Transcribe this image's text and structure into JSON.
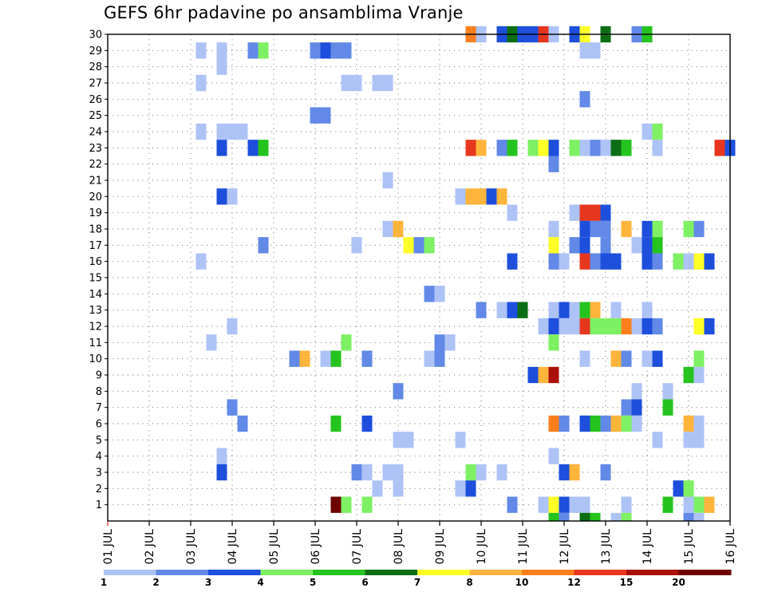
{
  "chart_data": {
    "type": "heatmap",
    "title": "GEFS 6hr padavine po ansamblima Vranje",
    "xlabel": "",
    "ylabel": "",
    "x_tick_labels": [
      "01 JUL",
      "02 JUL",
      "03 JUL",
      "04 JUL",
      "05 JUL",
      "06 JUL",
      "07 JUL",
      "08 JUL",
      "09 JUL",
      "10 JUL",
      "11 JUL",
      "12 JUL",
      "13 JUL",
      "14 JUL",
      "15 JUL",
      "16 JUL"
    ],
    "y_tick_labels": [
      "1",
      "2",
      "3",
      "4",
      "5",
      "6",
      "7",
      "8",
      "9",
      "10",
      "11",
      "12",
      "13",
      "14",
      "15",
      "16",
      "17",
      "18",
      "19",
      "20",
      "21",
      "22",
      "23",
      "24",
      "25",
      "26",
      "27",
      "28",
      "29",
      "30"
    ],
    "x_range": [
      "01 JUL",
      "16 JUL"
    ],
    "y_range": [
      1,
      30
    ],
    "time_step_hours": 6,
    "grid": true,
    "legend": {
      "placement": "bottom",
      "labels": [
        "1",
        "2",
        "3",
        "4",
        "5",
        "6",
        "7",
        "8",
        "10",
        "12",
        "15",
        "20"
      ],
      "colors": [
        "#aec3f5",
        "#6289e8",
        "#1d4fdc",
        "#7ef064",
        "#25c31e",
        "#0b6e14",
        "#ffff28",
        "#ffb43c",
        "#ff7f1e",
        "#e6371e",
        "#aa0f0a",
        "#6e0000"
      ]
    },
    "cells": [
      [
        30,
        35,
        "#ff7f1e"
      ],
      [
        30,
        36,
        "#aec3f5"
      ],
      [
        30,
        38,
        "#1d4fdc"
      ],
      [
        30,
        39,
        "#0b6e14"
      ],
      [
        30,
        40,
        "#1d4fdc"
      ],
      [
        30,
        41,
        "#1d4fdc"
      ],
      [
        30,
        42,
        "#e6371e"
      ],
      [
        30,
        43,
        "#aec3f5"
      ],
      [
        30,
        45,
        "#1d4fdc"
      ],
      [
        30,
        46,
        "#ffff28"
      ],
      [
        30,
        48,
        "#0b6e14"
      ],
      [
        30,
        51,
        "#6289e8"
      ],
      [
        30,
        52,
        "#25c31e"
      ],
      [
        29,
        9,
        "#aec3f5"
      ],
      [
        29,
        11,
        "#aec3f5"
      ],
      [
        29,
        14,
        "#6289e8"
      ],
      [
        29,
        15,
        "#7ef064"
      ],
      [
        29,
        20,
        "#6289e8"
      ],
      [
        29,
        21,
        "#1d4fdc"
      ],
      [
        29,
        22,
        "#6289e8"
      ],
      [
        29,
        23,
        "#6289e8"
      ],
      [
        29,
        46,
        "#aec3f5"
      ],
      [
        29,
        47,
        "#aec3f5"
      ],
      [
        28,
        11,
        "#aec3f5"
      ],
      [
        27,
        9,
        "#aec3f5"
      ],
      [
        27,
        23,
        "#aec3f5"
      ],
      [
        27,
        24,
        "#aec3f5"
      ],
      [
        27,
        26,
        "#aec3f5"
      ],
      [
        27,
        27,
        "#aec3f5"
      ],
      [
        26,
        46,
        "#6289e8"
      ],
      [
        25,
        20,
        "#6289e8"
      ],
      [
        25,
        21,
        "#6289e8"
      ],
      [
        24,
        9,
        "#aec3f5"
      ],
      [
        24,
        11,
        "#aec3f5"
      ],
      [
        24,
        12,
        "#aec3f5"
      ],
      [
        24,
        13,
        "#aec3f5"
      ],
      [
        24,
        52,
        "#aec3f5"
      ],
      [
        24,
        53,
        "#7ef064"
      ],
      [
        23,
        11,
        "#1d4fdc"
      ],
      [
        23,
        14,
        "#1d4fdc"
      ],
      [
        23,
        15,
        "#25c31e"
      ],
      [
        23,
        35,
        "#e6371e"
      ],
      [
        23,
        36,
        "#ffb43c"
      ],
      [
        23,
        38,
        "#6289e8"
      ],
      [
        23,
        39,
        "#25c31e"
      ],
      [
        23,
        41,
        "#7ef064"
      ],
      [
        23,
        42,
        "#ffff28"
      ],
      [
        23,
        43,
        "#1d4fdc"
      ],
      [
        23,
        45,
        "#7ef064"
      ],
      [
        23,
        46,
        "#aec3f5"
      ],
      [
        23,
        47,
        "#6289e8"
      ],
      [
        23,
        48,
        "#aec3f5"
      ],
      [
        23,
        49,
        "#0b6e14"
      ],
      [
        23,
        50,
        "#25c31e"
      ],
      [
        23,
        53,
        "#aec3f5"
      ],
      [
        23,
        59,
        "#e6371e"
      ],
      [
        23,
        60,
        "#1d4fdc"
      ],
      [
        22,
        43,
        "#6289e8"
      ],
      [
        21,
        27,
        "#aec3f5"
      ],
      [
        20,
        11,
        "#1d4fdc"
      ],
      [
        20,
        12,
        "#aec3f5"
      ],
      [
        20,
        34,
        "#aec3f5"
      ],
      [
        20,
        35,
        "#ffb43c"
      ],
      [
        20,
        36,
        "#ffb43c"
      ],
      [
        20,
        37,
        "#1d4fdc"
      ],
      [
        20,
        38,
        "#ffb43c"
      ],
      [
        19,
        39,
        "#aec3f5"
      ],
      [
        19,
        45,
        "#aec3f5"
      ],
      [
        19,
        46,
        "#e6371e"
      ],
      [
        19,
        47,
        "#e6371e"
      ],
      [
        19,
        48,
        "#1d4fdc"
      ],
      [
        18,
        27,
        "#aec3f5"
      ],
      [
        18,
        28,
        "#ffb43c"
      ],
      [
        18,
        43,
        "#aec3f5"
      ],
      [
        18,
        46,
        "#1d4fdc"
      ],
      [
        18,
        47,
        "#6289e8"
      ],
      [
        18,
        48,
        "#6289e8"
      ],
      [
        18,
        50,
        "#ffb43c"
      ],
      [
        18,
        52,
        "#1d4fdc"
      ],
      [
        18,
        53,
        "#7ef064"
      ],
      [
        18,
        56,
        "#7ef064"
      ],
      [
        18,
        57,
        "#6289e8"
      ],
      [
        17,
        15,
        "#6289e8"
      ],
      [
        17,
        24,
        "#aec3f5"
      ],
      [
        17,
        29,
        "#ffff28"
      ],
      [
        17,
        30,
        "#6289e8"
      ],
      [
        17,
        31,
        "#7ef064"
      ],
      [
        17,
        43,
        "#ffff28"
      ],
      [
        17,
        45,
        "#6289e8"
      ],
      [
        17,
        46,
        "#1d4fdc"
      ],
      [
        17,
        48,
        "#6289e8"
      ],
      [
        17,
        51,
        "#aec3f5"
      ],
      [
        17,
        52,
        "#1d4fdc"
      ],
      [
        17,
        53,
        "#25c31e"
      ],
      [
        16,
        9,
        "#aec3f5"
      ],
      [
        16,
        39,
        "#1d4fdc"
      ],
      [
        16,
        43,
        "#6289e8"
      ],
      [
        16,
        44,
        "#aec3f5"
      ],
      [
        16,
        46,
        "#e6371e"
      ],
      [
        16,
        47,
        "#6289e8"
      ],
      [
        16,
        48,
        "#1d4fdc"
      ],
      [
        16,
        49,
        "#1d4fdc"
      ],
      [
        16,
        52,
        "#1d4fdc"
      ],
      [
        16,
        53,
        "#6289e8"
      ],
      [
        16,
        55,
        "#7ef064"
      ],
      [
        16,
        56,
        "#aec3f5"
      ],
      [
        16,
        57,
        "#ffff28"
      ],
      [
        16,
        58,
        "#1d4fdc"
      ],
      [
        14,
        31,
        "#6289e8"
      ],
      [
        14,
        32,
        "#aec3f5"
      ],
      [
        13,
        36,
        "#6289e8"
      ],
      [
        13,
        38,
        "#aec3f5"
      ],
      [
        13,
        39,
        "#1d4fdc"
      ],
      [
        13,
        40,
        "#0b6e14"
      ],
      [
        13,
        43,
        "#aec3f5"
      ],
      [
        13,
        44,
        "#1d4fdc"
      ],
      [
        13,
        45,
        "#aec3f5"
      ],
      [
        13,
        46,
        "#25c31e"
      ],
      [
        13,
        47,
        "#ffb43c"
      ],
      [
        13,
        49,
        "#aec3f5"
      ],
      [
        13,
        52,
        "#aec3f5"
      ],
      [
        12,
        12,
        "#aec3f5"
      ],
      [
        12,
        42,
        "#aec3f5"
      ],
      [
        12,
        43,
        "#1d4fdc"
      ],
      [
        12,
        44,
        "#aec3f5"
      ],
      [
        12,
        45,
        "#aec3f5"
      ],
      [
        12,
        46,
        "#e6371e"
      ],
      [
        12,
        47,
        "#7ef064"
      ],
      [
        12,
        48,
        "#7ef064"
      ],
      [
        12,
        49,
        "#7ef064"
      ],
      [
        12,
        50,
        "#ff7f1e"
      ],
      [
        12,
        51,
        "#aec3f5"
      ],
      [
        12,
        52,
        "#1d4fdc"
      ],
      [
        12,
        53,
        "#6289e8"
      ],
      [
        12,
        57,
        "#ffff28"
      ],
      [
        12,
        58,
        "#1d4fdc"
      ],
      [
        11,
        10,
        "#aec3f5"
      ],
      [
        11,
        23,
        "#7ef064"
      ],
      [
        11,
        32,
        "#6289e8"
      ],
      [
        11,
        33,
        "#aec3f5"
      ],
      [
        11,
        43,
        "#7ef064"
      ],
      [
        10,
        18,
        "#6289e8"
      ],
      [
        10,
        19,
        "#ffb43c"
      ],
      [
        10,
        21,
        "#aec3f5"
      ],
      [
        10,
        22,
        "#25c31e"
      ],
      [
        10,
        25,
        "#6289e8"
      ],
      [
        10,
        31,
        "#aec3f5"
      ],
      [
        10,
        32,
        "#6289e8"
      ],
      [
        10,
        46,
        "#aec3f5"
      ],
      [
        10,
        49,
        "#ffb43c"
      ],
      [
        10,
        50,
        "#6289e8"
      ],
      [
        10,
        52,
        "#aec3f5"
      ],
      [
        10,
        53,
        "#1d4fdc"
      ],
      [
        10,
        57,
        "#7ef064"
      ],
      [
        9,
        41,
        "#1d4fdc"
      ],
      [
        9,
        42,
        "#ffb43c"
      ],
      [
        9,
        43,
        "#aa0f0a"
      ],
      [
        9,
        56,
        "#25c31e"
      ],
      [
        9,
        57,
        "#aec3f5"
      ],
      [
        8,
        28,
        "#6289e8"
      ],
      [
        8,
        51,
        "#aec3f5"
      ],
      [
        8,
        54,
        "#aec3f5"
      ],
      [
        7,
        12,
        "#6289e8"
      ],
      [
        7,
        50,
        "#6289e8"
      ],
      [
        7,
        51,
        "#1d4fdc"
      ],
      [
        7,
        54,
        "#25c31e"
      ],
      [
        6,
        13,
        "#6289e8"
      ],
      [
        6,
        22,
        "#25c31e"
      ],
      [
        6,
        25,
        "#1d4fdc"
      ],
      [
        6,
        43,
        "#ff7f1e"
      ],
      [
        6,
        44,
        "#6289e8"
      ],
      [
        6,
        46,
        "#1d4fdc"
      ],
      [
        6,
        47,
        "#25c31e"
      ],
      [
        6,
        48,
        "#6289e8"
      ],
      [
        6,
        49,
        "#ffb43c"
      ],
      [
        6,
        50,
        "#7ef064"
      ],
      [
        6,
        51,
        "#aec3f5"
      ],
      [
        6,
        56,
        "#ffb43c"
      ],
      [
        6,
        57,
        "#aec3f5"
      ],
      [
        5,
        28,
        "#aec3f5"
      ],
      [
        5,
        29,
        "#aec3f5"
      ],
      [
        5,
        34,
        "#aec3f5"
      ],
      [
        5,
        53,
        "#aec3f5"
      ],
      [
        5,
        56,
        "#aec3f5"
      ],
      [
        5,
        57,
        "#aec3f5"
      ],
      [
        4,
        11,
        "#aec3f5"
      ],
      [
        4,
        43,
        "#aec3f5"
      ],
      [
        3,
        11,
        "#1d4fdc"
      ],
      [
        3,
        24,
        "#6289e8"
      ],
      [
        3,
        25,
        "#aec3f5"
      ],
      [
        3,
        27,
        "#aec3f5"
      ],
      [
        3,
        28,
        "#aec3f5"
      ],
      [
        3,
        35,
        "#7ef064"
      ],
      [
        3,
        36,
        "#aec3f5"
      ],
      [
        3,
        38,
        "#aec3f5"
      ],
      [
        3,
        44,
        "#1d4fdc"
      ],
      [
        3,
        45,
        "#ffb43c"
      ],
      [
        3,
        48,
        "#6289e8"
      ],
      [
        2,
        26,
        "#aec3f5"
      ],
      [
        2,
        28,
        "#aec3f5"
      ],
      [
        2,
        34,
        "#aec3f5"
      ],
      [
        2,
        35,
        "#1d4fdc"
      ],
      [
        2,
        55,
        "#1d4fdc"
      ],
      [
        2,
        56,
        "#7ef064"
      ],
      [
        1,
        22,
        "#6e0000"
      ],
      [
        1,
        23,
        "#7ef064"
      ],
      [
        1,
        25,
        "#7ef064"
      ],
      [
        1,
        39,
        "#6289e8"
      ],
      [
        1,
        42,
        "#aec3f5"
      ],
      [
        1,
        43,
        "#ffff28"
      ],
      [
        1,
        44,
        "#1d4fdc"
      ],
      [
        1,
        45,
        "#aec3f5"
      ],
      [
        1,
        46,
        "#aec3f5"
      ],
      [
        1,
        50,
        "#aec3f5"
      ],
      [
        1,
        54,
        "#25c31e"
      ],
      [
        1,
        56,
        "#aec3f5"
      ],
      [
        1,
        57,
        "#7ef064"
      ],
      [
        1,
        58,
        "#ffb43c"
      ],
      [
        0.5,
        43,
        "#25c31e"
      ],
      [
        0.5,
        44,
        "#6289e8"
      ],
      [
        0.5,
        46,
        "#0b6e14"
      ],
      [
        0.5,
        47,
        "#25c31e"
      ],
      [
        0.5,
        49,
        "#aec3f5"
      ],
      [
        0.5,
        50,
        "#7ef064"
      ],
      [
        0.5,
        56,
        "#6289e8"
      ],
      [
        0.5,
        57,
        "#aec3f5"
      ]
    ]
  }
}
